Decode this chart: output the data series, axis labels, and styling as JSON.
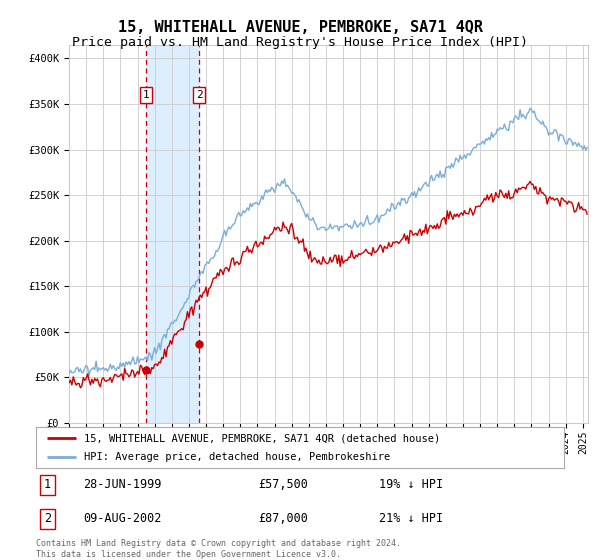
{
  "title": "15, WHITEHALL AVENUE, PEMBROKE, SA71 4QR",
  "subtitle": "Price paid vs. HM Land Registry's House Price Index (HPI)",
  "title_fontsize": 11,
  "subtitle_fontsize": 9.5,
  "ylabel_ticks": [
    "£0",
    "£50K",
    "£100K",
    "£150K",
    "£200K",
    "£250K",
    "£300K",
    "£350K",
    "£400K"
  ],
  "ytick_values": [
    0,
    50000,
    100000,
    150000,
    200000,
    250000,
    300000,
    350000,
    400000
  ],
  "ylim": [
    0,
    415000
  ],
  "xlim_start": 1995.0,
  "xlim_end": 2025.3,
  "hpi_color": "#7aadda",
  "price_color": "#cc0000",
  "sale1_x": 1999.487,
  "sale1_y": 57500,
  "sale2_x": 2002.604,
  "sale2_y": 87000,
  "sale1_label": "28-JUN-1999",
  "sale1_price": "£57,500",
  "sale1_hpi": "19% ↓ HPI",
  "sale2_label": "09-AUG-2002",
  "sale2_price": "£87,000",
  "sale2_hpi": "21% ↓ HPI",
  "legend_line1": "15, WHITEHALL AVENUE, PEMBROKE, SA71 4QR (detached house)",
  "legend_line2": "HPI: Average price, detached house, Pembrokeshire",
  "footer": "Contains HM Land Registry data © Crown copyright and database right 2024.\nThis data is licensed under the Open Government Licence v3.0.",
  "background_color": "#ffffff",
  "grid_color": "#cccccc",
  "shade_color": "#ddeeff"
}
